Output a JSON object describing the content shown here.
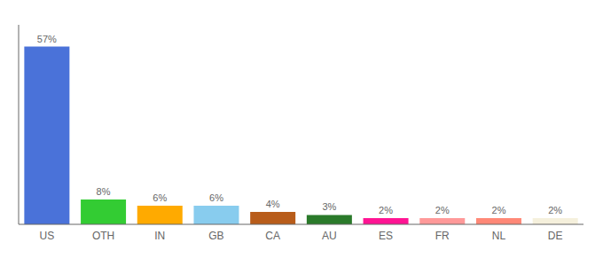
{
  "chart_data": {
    "type": "bar",
    "categories": [
      "US",
      "OTH",
      "IN",
      "GB",
      "CA",
      "AU",
      "ES",
      "FR",
      "NL",
      "DE"
    ],
    "values": [
      57,
      8,
      6,
      6,
      4,
      3,
      2,
      2,
      2,
      2
    ],
    "value_labels": [
      "57%",
      "8%",
      "6%",
      "6%",
      "4%",
      "3%",
      "2%",
      "2%",
      "2%",
      "2%"
    ],
    "colors": [
      "#4a72d9",
      "#33cc33",
      "#ffaa00",
      "#88ccee",
      "#b85c1a",
      "#2a7a2a",
      "#ff1493",
      "#ff9999",
      "#ff8877",
      "#f5f0dc"
    ],
    "ylim": [
      0,
      64
    ],
    "grid": false,
    "data_labels": true,
    "tick_labels": "x"
  }
}
